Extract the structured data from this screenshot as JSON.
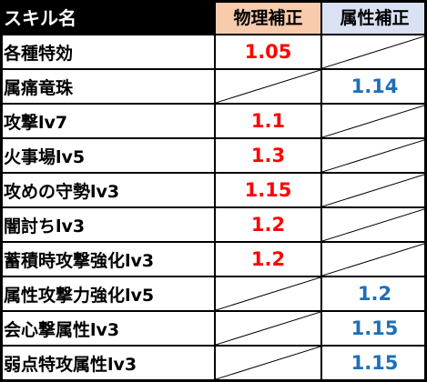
{
  "header": {
    "skill": "スキル名",
    "phys": "物理補正",
    "attr": "属性補正"
  },
  "colors": {
    "phys_value": "#ff0000",
    "attr_value": "#1f6fb8",
    "phys_header_bg": "#f8cbad",
    "attr_header_bg": "#d9e1f2",
    "name_header_bg": "#000000"
  },
  "rows": [
    {
      "name": "各種特効",
      "phys": "1.05",
      "attr": ""
    },
    {
      "name": "属痛竜珠",
      "phys": "",
      "attr": "1.14"
    },
    {
      "name": "攻撃lv7",
      "phys": "1.1",
      "attr": ""
    },
    {
      "name": "火事場lv5",
      "phys": "1.3",
      "attr": ""
    },
    {
      "name": "攻めの守勢lv3",
      "phys": "1.15",
      "attr": ""
    },
    {
      "name": "闇討ちlv3",
      "phys": "1.2",
      "attr": ""
    },
    {
      "name": "蓄積時攻撃強化lv3",
      "phys": "1.2",
      "attr": ""
    },
    {
      "name": "属性攻撃力強化lv5",
      "phys": "",
      "attr": "1.2"
    },
    {
      "name": "会心撃属性lv3",
      "phys": "",
      "attr": "1.15"
    },
    {
      "name": "弱点特攻属性lv3",
      "phys": "",
      "attr": "1.15"
    }
  ]
}
